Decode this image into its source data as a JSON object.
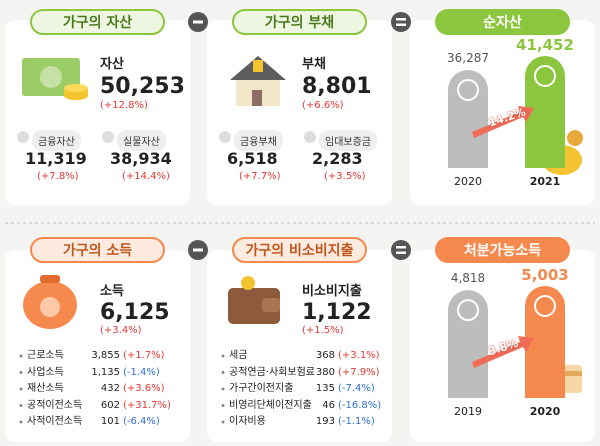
{
  "assets": {
    "title": "가구의 자산",
    "label": "자산",
    "value": "50,253",
    "change": "(+12.8%)",
    "items": [
      {
        "label": "금융자산",
        "value": "11,319",
        "change": "(+7.8%)"
      },
      {
        "label": "실물자산",
        "value": "38,934",
        "change": "(+14.4%)"
      }
    ]
  },
  "debt": {
    "title": "가구의 부채",
    "label": "부채",
    "value": "8,801",
    "change": "(+6.6%)",
    "items": [
      {
        "label": "금융부채",
        "value": "6,518",
        "change": "(+7.7%)"
      },
      {
        "label": "임대보증금",
        "value": "2,283",
        "change": "(+3.5%)"
      }
    ]
  },
  "net_assets": {
    "title": "순자산",
    "categories": [
      "2020",
      "2021"
    ],
    "values": [
      36287,
      41452
    ],
    "value_labels": [
      "36,287",
      "41,452"
    ],
    "growth": "14.2%",
    "colors": [
      "#bdbdbd",
      "#8cc63f"
    ]
  },
  "income": {
    "title": "가구의 소득",
    "label": "소득",
    "value": "6,125",
    "change": "(+3.4%)",
    "items": [
      {
        "label": "근로소득",
        "value": "3,855",
        "change": "(+1.7%)"
      },
      {
        "label": "사업소득",
        "value": "1,135",
        "change": "(-1.4%)"
      },
      {
        "label": "재산소득",
        "value": "432",
        "change": "(+3.6%)"
      },
      {
        "label": "공적이전소득",
        "value": "602",
        "change": "(+31.7%)"
      },
      {
        "label": "사적이전소득",
        "value": "101",
        "change": "(-6.4%)"
      }
    ]
  },
  "non_consumption": {
    "title": "가구의 비소비지출",
    "label": "비소비지출",
    "value": "1,122",
    "change": "(+1.5%)",
    "items": [
      {
        "label": "세금",
        "value": "368",
        "change": "(+3.1%)"
      },
      {
        "label": "공적연금·사회보험료",
        "value": "380",
        "change": "(+7.9%)"
      },
      {
        "label": "가구간이전지출",
        "value": "135",
        "change": "(-7.4%)"
      },
      {
        "label": "비영리단체이전지출",
        "value": "46",
        "change": "(-16.8%)"
      },
      {
        "label": "이자비용",
        "value": "193",
        "change": "(-1.1%)"
      }
    ]
  },
  "disposable_income": {
    "title": "처분가능소득",
    "categories": [
      "2019",
      "2020"
    ],
    "values": [
      4818,
      5003
    ],
    "value_labels": [
      "4,818",
      "5,003"
    ],
    "growth": "3.8%",
    "colors": [
      "#bdbdbd",
      "#f5894e"
    ]
  }
}
